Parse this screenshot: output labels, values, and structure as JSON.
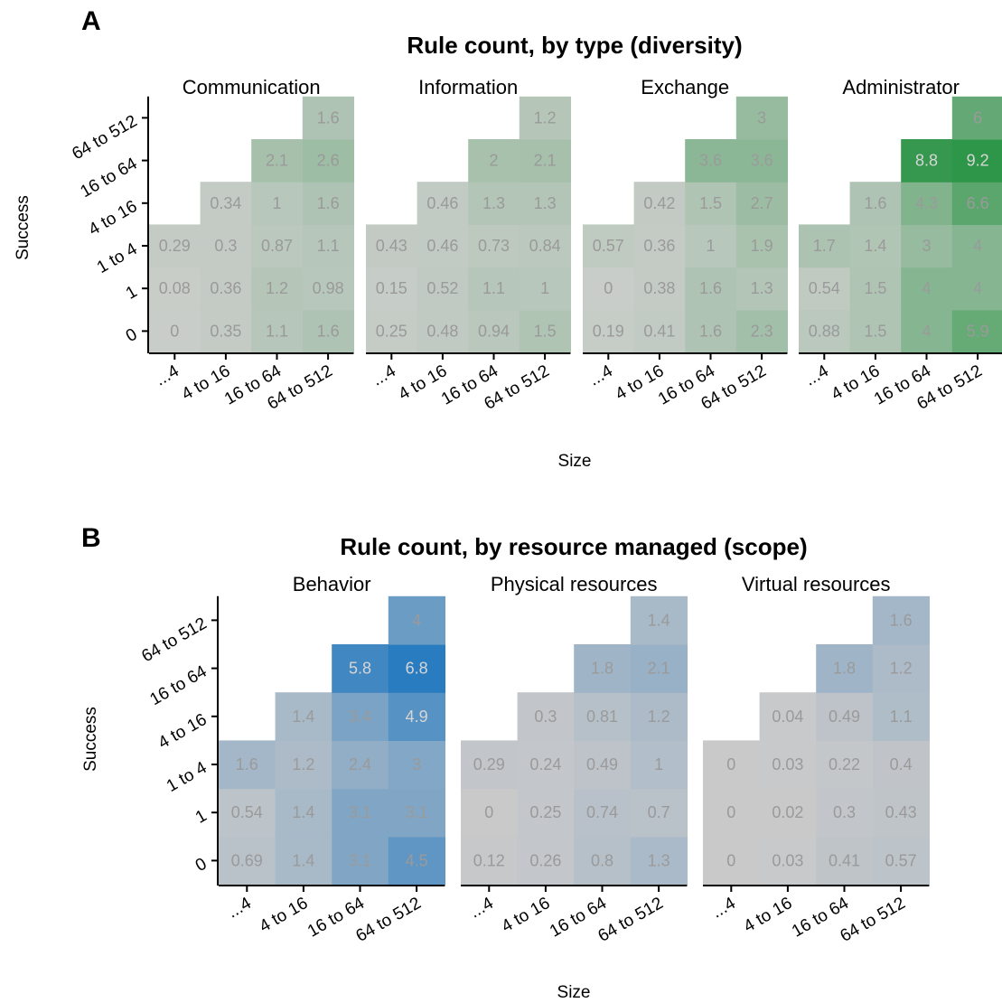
{
  "chart_data": [
    {
      "type": "heatmap",
      "panel_label": "A",
      "title": "Rule count, by type (diversity)",
      "xlabel": "Size",
      "ylabel": "Success",
      "x_categories": [
        "...4",
        "4 to 16",
        "16 to 64",
        "64 to 512"
      ],
      "y_categories": [
        "0",
        "1",
        "1 to 4",
        "4 to 16",
        "16 to 64",
        "64 to 512"
      ],
      "color_scale": {
        "low": "#c9cdc9",
        "high": "#2e9648",
        "max_value": 9.2
      },
      "facets": [
        {
          "name": "Communication",
          "values": [
            [
              0,
              0.35,
              1.1,
              1.6
            ],
            [
              0.08,
              0.36,
              1.2,
              0.98
            ],
            [
              0.29,
              0.3,
              0.87,
              1.1
            ],
            [
              null,
              0.34,
              1,
              1.6
            ],
            [
              null,
              null,
              2.1,
              2.6
            ],
            [
              null,
              null,
              null,
              1.6
            ]
          ],
          "labels": [
            [
              "0",
              "0.35",
              "1.1",
              "1.6"
            ],
            [
              "0.08",
              "0.36",
              "1.2",
              "0.98"
            ],
            [
              "0.29",
              "0.3",
              "0.87",
              "1.1"
            ],
            [
              null,
              "0.34",
              "1",
              "1.6"
            ],
            [
              null,
              null,
              "2.1",
              "2.6"
            ],
            [
              null,
              null,
              null,
              "1.6"
            ]
          ]
        },
        {
          "name": "Information",
          "values": [
            [
              0.25,
              0.48,
              0.94,
              1.5
            ],
            [
              0.15,
              0.52,
              1.1,
              1
            ],
            [
              0.43,
              0.46,
              0.73,
              0.84
            ],
            [
              null,
              0.46,
              1.3,
              1.3
            ],
            [
              null,
              null,
              2,
              2.1
            ],
            [
              null,
              null,
              null,
              1.2
            ]
          ],
          "labels": [
            [
              "0.25",
              "0.48",
              "0.94",
              "1.5"
            ],
            [
              "0.15",
              "0.52",
              "1.1",
              "1"
            ],
            [
              "0.43",
              "0.46",
              "0.73",
              "0.84"
            ],
            [
              null,
              "0.46",
              "1.3",
              "1.3"
            ],
            [
              null,
              null,
              "2",
              "2.1"
            ],
            [
              null,
              null,
              null,
              "1.2"
            ]
          ]
        },
        {
          "name": "Exchange",
          "values": [
            [
              0.19,
              0.41,
              1.6,
              2.3
            ],
            [
              0,
              0.38,
              1.6,
              1.3
            ],
            [
              0.57,
              0.36,
              1,
              1.9
            ],
            [
              null,
              0.42,
              1.5,
              2.7
            ],
            [
              null,
              null,
              3.6,
              3.6
            ],
            [
              null,
              null,
              null,
              3
            ]
          ],
          "labels": [
            [
              "0.19",
              "0.41",
              "1.6",
              "2.3"
            ],
            [
              "0",
              "0.38",
              "1.6",
              "1.3"
            ],
            [
              "0.57",
              "0.36",
              "1",
              "1.9"
            ],
            [
              null,
              "0.42",
              "1.5",
              "2.7"
            ],
            [
              null,
              null,
              "3.6",
              "3.6"
            ],
            [
              null,
              null,
              null,
              "3"
            ]
          ]
        },
        {
          "name": "Administrator",
          "values": [
            [
              0.88,
              1.5,
              4,
              5.9
            ],
            [
              0.54,
              1.5,
              4,
              4
            ],
            [
              1.7,
              1.4,
              3,
              4
            ],
            [
              null,
              1.6,
              4.3,
              6.6
            ],
            [
              null,
              null,
              8.8,
              9.2
            ],
            [
              null,
              null,
              null,
              6
            ]
          ],
          "labels": [
            [
              "0.88",
              "1.5",
              "4",
              "5.9"
            ],
            [
              "0.54",
              "1.5",
              "4",
              "4"
            ],
            [
              "1.7",
              "1.4",
              "3",
              "4"
            ],
            [
              null,
              "1.6",
              "4.3",
              "6.6"
            ],
            [
              null,
              null,
              "8.8",
              "9.2"
            ],
            [
              null,
              null,
              null,
              "6"
            ]
          ]
        }
      ]
    },
    {
      "type": "heatmap",
      "panel_label": "B",
      "title": "Rule count, by resource managed (scope)",
      "xlabel": "Size",
      "ylabel": "Success",
      "x_categories": [
        "...4",
        "4 to 16",
        "16 to 64",
        "64 to 512"
      ],
      "y_categories": [
        "0",
        "1",
        "1 to 4",
        "4 to 16",
        "16 to 64",
        "64 to 512"
      ],
      "color_scale": {
        "low": "#c9c9ca",
        "high": "#2a7cc0",
        "max_value": 6.8
      },
      "facets": [
        {
          "name": "Behavior",
          "values": [
            [
              0.69,
              1.4,
              3.1,
              4.5
            ],
            [
              0.54,
              1.4,
              3.1,
              3.1
            ],
            [
              1.6,
              1.2,
              2.4,
              3
            ],
            [
              null,
              1.4,
              3.4,
              4.9
            ],
            [
              null,
              null,
              5.8,
              6.8
            ],
            [
              null,
              null,
              null,
              4
            ]
          ],
          "labels": [
            [
              "0.69",
              "1.4",
              "3.1",
              "4.5"
            ],
            [
              "0.54",
              "1.4",
              "3.1",
              "3.1"
            ],
            [
              "1.6",
              "1.2",
              "2.4",
              "3"
            ],
            [
              null,
              "1.4",
              "3.4",
              "4.9"
            ],
            [
              null,
              null,
              "5.8",
              "6.8"
            ],
            [
              null,
              null,
              null,
              "4"
            ]
          ]
        },
        {
          "name": "Physical resources",
          "values": [
            [
              0.12,
              0.26,
              0.8,
              1.3
            ],
            [
              0,
              0.25,
              0.74,
              0.7
            ],
            [
              0.29,
              0.24,
              0.49,
              1
            ],
            [
              null,
              0.3,
              0.81,
              1.2
            ],
            [
              null,
              null,
              1.8,
              2.1
            ],
            [
              null,
              null,
              null,
              1.4
            ]
          ],
          "labels": [
            [
              "0.12",
              "0.26",
              "0.8",
              "1.3"
            ],
            [
              "0",
              "0.25",
              "0.74",
              "0.7"
            ],
            [
              "0.29",
              "0.24",
              "0.49",
              "1"
            ],
            [
              null,
              "0.3",
              "0.81",
              "1.2"
            ],
            [
              null,
              null,
              "1.8",
              "2.1"
            ],
            [
              null,
              null,
              null,
              "1.4"
            ]
          ]
        },
        {
          "name": "Virtual resources",
          "values": [
            [
              0,
              0.03,
              0.41,
              0.57
            ],
            [
              0,
              0.02,
              0.3,
              0.43
            ],
            [
              0,
              0.03,
              0.22,
              0.4
            ],
            [
              null,
              0.04,
              0.49,
              1.1
            ],
            [
              null,
              null,
              1.8,
              1.2
            ],
            [
              null,
              null,
              null,
              1.6
            ]
          ],
          "labels": [
            [
              "0",
              "0.03",
              "0.41",
              "0.57"
            ],
            [
              "0",
              "0.02",
              "0.3",
              "0.43"
            ],
            [
              "0",
              "0.03",
              "0.22",
              "0.4"
            ],
            [
              null,
              "0.04",
              "0.49",
              "1.1"
            ],
            [
              null,
              null,
              "1.8",
              "1.2"
            ],
            [
              null,
              null,
              null,
              "1.6"
            ]
          ]
        }
      ]
    }
  ]
}
